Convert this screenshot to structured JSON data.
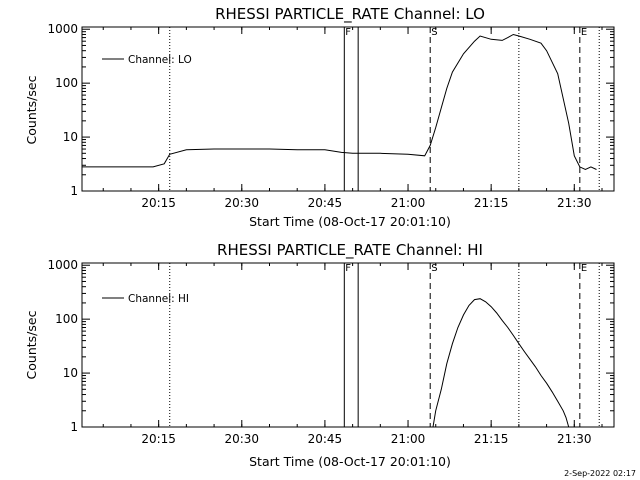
{
  "footer": {
    "timestamp": "2-Sep-2022 02:17"
  },
  "chart_data": [
    {
      "type": "line",
      "title": "RHESSI PARTICLE_RATE Channel: LO",
      "xlabel": "Start Time (08-Oct-17 20:01:10)",
      "ylabel": "Counts/sec",
      "yscale": "log",
      "ylim": [
        1,
        1100
      ],
      "xlim": [
        "20:01:10",
        "21:37:10"
      ],
      "x_ticks": [
        "20:15",
        "20:30",
        "20:45",
        "21:00",
        "21:15",
        "21:30"
      ],
      "y_ticks": [
        "1",
        "10",
        "100",
        "1000"
      ],
      "legend": {
        "label": "Channel: LO",
        "placement": "top-left"
      },
      "series": [
        {
          "name": "Channel: LO",
          "x": [
            "20:01:10",
            "20:08",
            "20:11",
            "20:14",
            "20:16",
            "20:17",
            "20:20",
            "20:25",
            "20:30",
            "20:35",
            "20:40",
            "20:45",
            "20:48",
            "20:50",
            "20:55",
            "21:00",
            "21:03",
            "21:04",
            "21:05",
            "21:06",
            "21:07",
            "21:08",
            "21:10",
            "21:12",
            "21:13",
            "21:15",
            "21:17",
            "21:18",
            "21:19",
            "21:20",
            "21:22",
            "21:24",
            "21:25",
            "21:27",
            "21:29",
            "21:30",
            "21:31",
            "21:32",
            "21:33",
            "21:34"
          ],
          "values": [
            2.8,
            2.8,
            2.8,
            2.8,
            3.2,
            4.8,
            5.8,
            6.0,
            6.0,
            6.0,
            5.8,
            5.8,
            5.2,
            5.0,
            5.0,
            4.8,
            4.5,
            7,
            15,
            35,
            80,
            160,
            350,
            600,
            750,
            650,
            620,
            700,
            800,
            750,
            650,
            550,
            400,
            150,
            18,
            4.5,
            2.8,
            2.5,
            2.8,
            2.5
          ]
        }
      ],
      "markers": [
        {
          "label": "F",
          "time": "20:48:30",
          "style": "solid"
        },
        {
          "label": "",
          "time": "20:51:00",
          "style": "solid"
        },
        {
          "label": "S",
          "time": "21:04:00",
          "style": "dashed"
        },
        {
          "label": "E",
          "time": "21:31:00",
          "style": "dashed"
        },
        {
          "label": "",
          "time": "20:17:00",
          "style": "dotted"
        },
        {
          "label": "",
          "time": "21:20:00",
          "style": "dotted"
        },
        {
          "label": "",
          "time": "21:34:30",
          "style": "dotted"
        }
      ]
    },
    {
      "type": "line",
      "title": "RHESSI PARTICLE_RATE Channel: HI",
      "xlabel": "Start Time (08-Oct-17 20:01:10)",
      "ylabel": "Counts/sec",
      "yscale": "log",
      "ylim": [
        1,
        1100
      ],
      "xlim": [
        "20:01:10",
        "21:37:10"
      ],
      "x_ticks": [
        "20:15",
        "20:30",
        "20:45",
        "21:00",
        "21:15",
        "21:30"
      ],
      "y_ticks": [
        "1",
        "10",
        "100",
        "1000"
      ],
      "legend": {
        "label": "Channel: HI",
        "placement": "top-left"
      },
      "series": [
        {
          "name": "Channel: HI",
          "x": [
            "21:04:30",
            "21:05",
            "21:06",
            "21:07",
            "21:08",
            "21:09",
            "21:10",
            "21:11",
            "21:12",
            "21:13",
            "21:14",
            "21:15",
            "21:16",
            "21:17",
            "21:18",
            "21:19",
            "21:20",
            "21:21",
            "21:22",
            "21:23",
            "21:24",
            "21:25",
            "21:26",
            "21:27",
            "21:28",
            "21:28:30",
            "21:29"
          ],
          "values": [
            1,
            2,
            5,
            15,
            35,
            70,
            120,
            180,
            230,
            240,
            210,
            170,
            130,
            95,
            70,
            50,
            35,
            25,
            18,
            13,
            9,
            6.5,
            4.5,
            3,
            2,
            1.5,
            1
          ]
        }
      ],
      "markers": [
        {
          "label": "F",
          "time": "20:48:30",
          "style": "solid"
        },
        {
          "label": "",
          "time": "20:51:00",
          "style": "solid"
        },
        {
          "label": "S",
          "time": "21:04:00",
          "style": "dashed"
        },
        {
          "label": "E",
          "time": "21:31:00",
          "style": "dashed"
        },
        {
          "label": "",
          "time": "20:17:00",
          "style": "dotted"
        },
        {
          "label": "",
          "time": "21:20:00",
          "style": "dotted"
        },
        {
          "label": "",
          "time": "21:34:30",
          "style": "dotted"
        }
      ]
    }
  ]
}
